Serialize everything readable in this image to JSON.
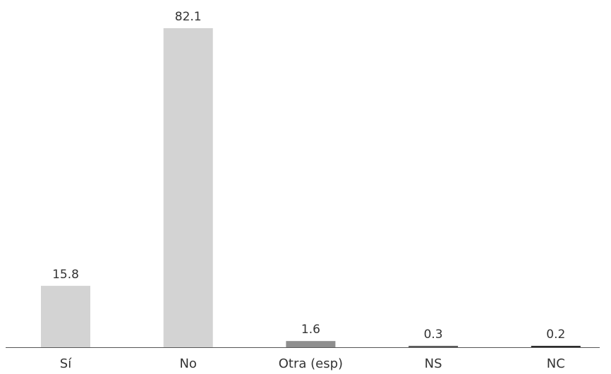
{
  "chart_data": {
    "type": "bar",
    "title": "",
    "xlabel": "",
    "ylabel": "",
    "categories": [
      "Sí",
      "No",
      "Otra (esp)",
      "NS",
      "NC"
    ],
    "values": [
      15.8,
      82.1,
      1.6,
      0.3,
      0.2
    ],
    "value_labels": [
      "15.8",
      "82.1",
      "1.6",
      "0.3",
      "0.2"
    ],
    "colors": [
      "#d3d3d3",
      "#d3d3d3",
      "#8e8e8e",
      "#5e5e5e",
      "#2e2e2e"
    ],
    "axis_color": "#555555",
    "ylim": [
      0,
      82.1
    ],
    "grid": false,
    "legend": "none"
  }
}
